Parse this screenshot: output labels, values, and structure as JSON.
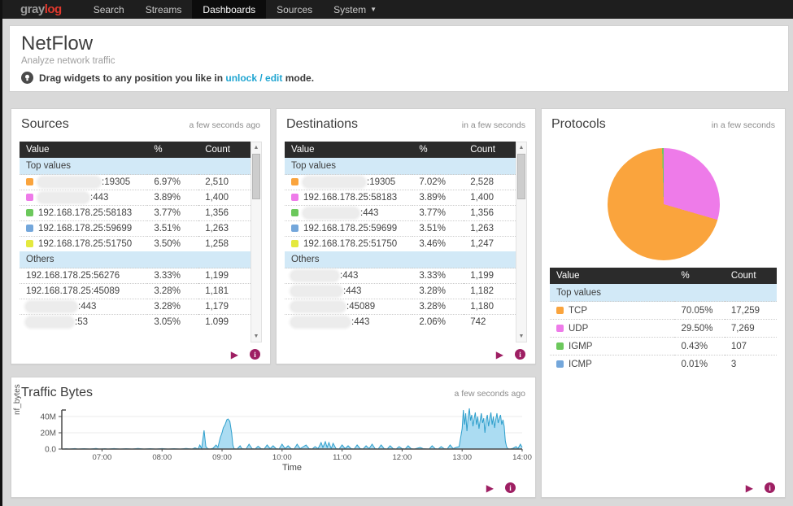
{
  "navbar": {
    "logo_gray": "gray",
    "logo_log": "log",
    "items": [
      {
        "label": "Search",
        "active": false,
        "caret": false
      },
      {
        "label": "Streams",
        "active": false,
        "caret": false
      },
      {
        "label": "Dashboards",
        "active": true,
        "caret": false
      },
      {
        "label": "Sources",
        "active": false,
        "caret": false
      },
      {
        "label": "System",
        "active": false,
        "caret": true
      }
    ]
  },
  "header": {
    "title": "NetFlow",
    "subtitle": "Analyze network traffic",
    "hint_prefix": "Drag widgets to any position you like in ",
    "hint_link": "unlock / edit",
    "hint_suffix": " mode."
  },
  "columns": [
    "Value",
    "%",
    "Count"
  ],
  "widgets": {
    "sources": {
      "title": "Sources",
      "updated": "a few seconds ago",
      "sections": [
        {
          "label": "Top values",
          "rows": [
            {
              "swatch": "#FAA43D",
              "redacted": true,
              "pill_w": 76,
              "value": ":19305",
              "pct": "6.97%",
              "count": "2,510"
            },
            {
              "swatch": "#EE7BE9",
              "redacted": true,
              "pill_w": 62,
              "value": ":443",
              "pct": "3.89%",
              "count": "1,400"
            },
            {
              "swatch": "#6CC85C",
              "redacted": false,
              "pill_w": 0,
              "value": "192.168.178.25:58183",
              "pct": "3.77%",
              "count": "1,356"
            },
            {
              "swatch": "#74A7DB",
              "redacted": false,
              "pill_w": 0,
              "value": "192.168.178.25:59699",
              "pct": "3.51%",
              "count": "1,263"
            },
            {
              "swatch": "#E4E93E",
              "redacted": false,
              "pill_w": 0,
              "value": "192.168.178.25:51750",
              "pct": "3.50%",
              "count": "1,258"
            }
          ]
        },
        {
          "label": "Others",
          "rows": [
            {
              "swatch": null,
              "redacted": false,
              "pill_w": 0,
              "value": "192.168.178.25:56276",
              "pct": "3.33%",
              "count": "1,199"
            },
            {
              "swatch": null,
              "redacted": false,
              "pill_w": 0,
              "value": "192.168.178.25:45089",
              "pct": "3.28%",
              "count": "1,181"
            },
            {
              "swatch": null,
              "redacted": true,
              "pill_w": 62,
              "value": ":443",
              "pct": "3.28%",
              "count": "1,179"
            },
            {
              "swatch": null,
              "redacted": true,
              "pill_w": 58,
              "value": ":53",
              "pct": "3.05%",
              "count": "1.099"
            }
          ]
        }
      ]
    },
    "destinations": {
      "title": "Destinations",
      "updated": "in a few seconds",
      "sections": [
        {
          "label": "Top values",
          "rows": [
            {
              "swatch": "#FAA43D",
              "redacted": true,
              "pill_w": 76,
              "value": ":19305",
              "pct": "7.02%",
              "count": "2,528"
            },
            {
              "swatch": "#EE7BE9",
              "redacted": false,
              "pill_w": 0,
              "value": "192.168.178.25:58183",
              "pct": "3.89%",
              "count": "1,400"
            },
            {
              "swatch": "#6CC85C",
              "redacted": true,
              "pill_w": 68,
              "value": ":443",
              "pct": "3.77%",
              "count": "1,356"
            },
            {
              "swatch": "#74A7DB",
              "redacted": false,
              "pill_w": 0,
              "value": "192.168.178.25:59699",
              "pct": "3.51%",
              "count": "1,263"
            },
            {
              "swatch": "#E4E93E",
              "redacted": false,
              "pill_w": 0,
              "value": "192.168.178.25:51750",
              "pct": "3.46%",
              "count": "1,247"
            }
          ]
        },
        {
          "label": "Others",
          "rows": [
            {
              "swatch": null,
              "redacted": true,
              "pill_w": 58,
              "value": ":443",
              "pct": "3.33%",
              "count": "1,199"
            },
            {
              "swatch": null,
              "redacted": true,
              "pill_w": 62,
              "value": ":443",
              "pct": "3.28%",
              "count": "1,182"
            },
            {
              "swatch": null,
              "redacted": true,
              "pill_w": 66,
              "value": ":45089",
              "pct": "3.28%",
              "count": "1,180"
            },
            {
              "swatch": null,
              "redacted": true,
              "pill_w": 72,
              "value": ":443",
              "pct": "2.06%",
              "count": "742"
            }
          ]
        }
      ]
    },
    "protocols": {
      "title": "Protocols",
      "updated": "in a few seconds",
      "sections": [
        {
          "label": "Top values",
          "rows": [
            {
              "swatch": "#FAA43D",
              "redacted": false,
              "pill_w": 0,
              "value": "TCP",
              "pct": "70.05%",
              "count": "17,259"
            },
            {
              "swatch": "#EE7BE9",
              "redacted": false,
              "pill_w": 0,
              "value": "UDP",
              "pct": "29.50%",
              "count": "7,269"
            },
            {
              "swatch": "#6CC85C",
              "redacted": false,
              "pill_w": 0,
              "value": "IGMP",
              "pct": "0.43%",
              "count": "107"
            },
            {
              "swatch": "#74A7DB",
              "redacted": false,
              "pill_w": 0,
              "value": "ICMP",
              "pct": "0.01%",
              "count": "3"
            }
          ]
        }
      ]
    },
    "traffic": {
      "title": "Traffic Bytes",
      "updated": "a few seconds ago"
    }
  },
  "chart_data": [
    {
      "type": "pie",
      "title": "Protocols",
      "labels": [
        "TCP",
        "UDP",
        "IGMP",
        "ICMP"
      ],
      "values": [
        70.05,
        29.5,
        0.43,
        0.01
      ],
      "counts": [
        17259,
        7269,
        107,
        3
      ],
      "draw_order_slices": [
        {
          "label": "UDP",
          "pct": 29.5,
          "color": "#EE7BE9"
        },
        {
          "label": "TCP",
          "pct": 70.05,
          "color": "#FAA43D"
        },
        {
          "label": "IGMP",
          "pct": 0.43,
          "color": "#6CC85C"
        },
        {
          "label": "ICMP",
          "pct": 0.01,
          "color": "#74A7DB"
        }
      ],
      "legend_position": "table-below"
    },
    {
      "type": "area",
      "title": "Traffic Bytes",
      "xlabel": "Time",
      "ylabel": "nf_bytes",
      "yticks": [
        "0.0",
        "20M",
        "40M"
      ],
      "ytick_values": [
        0,
        20,
        40
      ],
      "xticks": [
        "07:00",
        "08:00",
        "09:00",
        "10:00",
        "11:00",
        "12:00",
        "13:00",
        "14:00"
      ],
      "xtick_values": [
        7,
        8,
        9,
        10,
        11,
        12,
        13,
        14
      ],
      "xlim": [
        6.33,
        14.0
      ],
      "ylim": [
        0,
        52
      ],
      "y_unit": "bytes (M)",
      "line_color": "#2E9FCC",
      "fill_color": "#ABDCF2",
      "points": [
        [
          6.35,
          0
        ],
        [
          6.4,
          0.4
        ],
        [
          6.45,
          0
        ],
        [
          6.55,
          0.6
        ],
        [
          6.6,
          0
        ],
        [
          6.7,
          0.5
        ],
        [
          6.8,
          0
        ],
        [
          6.9,
          0.8
        ],
        [
          6.95,
          0
        ],
        [
          7.05,
          0.5
        ],
        [
          7.1,
          0
        ],
        [
          7.2,
          0.6
        ],
        [
          7.3,
          0
        ],
        [
          7.4,
          0.5
        ],
        [
          7.5,
          0
        ],
        [
          7.6,
          0.7
        ],
        [
          7.7,
          0
        ],
        [
          7.8,
          0.5
        ],
        [
          7.9,
          0
        ],
        [
          8.0,
          0.6
        ],
        [
          8.1,
          0
        ],
        [
          8.2,
          0.5
        ],
        [
          8.3,
          0
        ],
        [
          8.4,
          0.8
        ],
        [
          8.5,
          0
        ],
        [
          8.55,
          1.5
        ],
        [
          8.6,
          0
        ],
        [
          8.63,
          5
        ],
        [
          8.66,
          0.5
        ],
        [
          8.7,
          23
        ],
        [
          8.73,
          3
        ],
        [
          8.76,
          0.5
        ],
        [
          8.8,
          0
        ],
        [
          8.85,
          1
        ],
        [
          8.9,
          5
        ],
        [
          8.93,
          2
        ],
        [
          8.97,
          14
        ],
        [
          9.0,
          20
        ],
        [
          9.02,
          26
        ],
        [
          9.05,
          30
        ],
        [
          9.08,
          36
        ],
        [
          9.1,
          37
        ],
        [
          9.13,
          34
        ],
        [
          9.16,
          20
        ],
        [
          9.18,
          5
        ],
        [
          9.2,
          0.5
        ],
        [
          9.25,
          0
        ],
        [
          9.3,
          4
        ],
        [
          9.33,
          0.5
        ],
        [
          9.4,
          0
        ],
        [
          9.45,
          6
        ],
        [
          9.5,
          0.5
        ],
        [
          9.55,
          0
        ],
        [
          9.6,
          3.5
        ],
        [
          9.65,
          0.5
        ],
        [
          9.7,
          0
        ],
        [
          9.75,
          5
        ],
        [
          9.8,
          0.5
        ],
        [
          9.85,
          4
        ],
        [
          9.9,
          0.5
        ],
        [
          9.95,
          0
        ],
        [
          10.0,
          6
        ],
        [
          10.05,
          0.5
        ],
        [
          10.1,
          4
        ],
        [
          10.15,
          0.5
        ],
        [
          10.2,
          0
        ],
        [
          10.25,
          6
        ],
        [
          10.3,
          0.5
        ],
        [
          10.4,
          5
        ],
        [
          10.45,
          0.5
        ],
        [
          10.5,
          0
        ],
        [
          10.55,
          3
        ],
        [
          10.6,
          0.5
        ],
        [
          10.65,
          8
        ],
        [
          10.68,
          2
        ],
        [
          10.72,
          9
        ],
        [
          10.75,
          2
        ],
        [
          10.78,
          8
        ],
        [
          10.82,
          0.5
        ],
        [
          10.85,
          7
        ],
        [
          10.9,
          0.5
        ],
        [
          10.95,
          0
        ],
        [
          11.0,
          5
        ],
        [
          11.05,
          0.5
        ],
        [
          11.1,
          4
        ],
        [
          11.15,
          0.5
        ],
        [
          11.2,
          0
        ],
        [
          11.25,
          5
        ],
        [
          11.3,
          0.5
        ],
        [
          11.35,
          0
        ],
        [
          11.4,
          4
        ],
        [
          11.45,
          0.5
        ],
        [
          11.5,
          6
        ],
        [
          11.55,
          0.5
        ],
        [
          11.6,
          0
        ],
        [
          11.65,
          5
        ],
        [
          11.7,
          0.5
        ],
        [
          11.75,
          0
        ],
        [
          11.8,
          4
        ],
        [
          11.85,
          0.5
        ],
        [
          11.9,
          0
        ],
        [
          11.95,
          3
        ],
        [
          12.0,
          0.5
        ],
        [
          12.05,
          0
        ],
        [
          12.1,
          4
        ],
        [
          12.15,
          0.5
        ],
        [
          12.2,
          0
        ],
        [
          12.3,
          2
        ],
        [
          12.35,
          0.5
        ],
        [
          12.45,
          0
        ],
        [
          12.5,
          4
        ],
        [
          12.55,
          0.5
        ],
        [
          12.6,
          0
        ],
        [
          12.65,
          3
        ],
        [
          12.7,
          0.5
        ],
        [
          12.75,
          0
        ],
        [
          12.8,
          5
        ],
        [
          12.85,
          0.5
        ],
        [
          12.9,
          2
        ],
        [
          12.95,
          3
        ],
        [
          13.0,
          25
        ],
        [
          13.02,
          48
        ],
        [
          13.04,
          30
        ],
        [
          13.06,
          44
        ],
        [
          13.08,
          22
        ],
        [
          13.1,
          40
        ],
        [
          13.12,
          50
        ],
        [
          13.14,
          35
        ],
        [
          13.16,
          42
        ],
        [
          13.18,
          28
        ],
        [
          13.2,
          38
        ],
        [
          13.22,
          45
        ],
        [
          13.24,
          30
        ],
        [
          13.26,
          40
        ],
        [
          13.28,
          25
        ],
        [
          13.3,
          35
        ],
        [
          13.32,
          44
        ],
        [
          13.34,
          32
        ],
        [
          13.36,
          38
        ],
        [
          13.38,
          20
        ],
        [
          13.4,
          36
        ],
        [
          13.42,
          42
        ],
        [
          13.44,
          28
        ],
        [
          13.46,
          38
        ],
        [
          13.48,
          45
        ],
        [
          13.5,
          30
        ],
        [
          13.52,
          40
        ],
        [
          13.54,
          26
        ],
        [
          13.56,
          36
        ],
        [
          13.58,
          44
        ],
        [
          13.6,
          32
        ],
        [
          13.62,
          38
        ],
        [
          13.64,
          42
        ],
        [
          13.66,
          30
        ],
        [
          13.68,
          36
        ],
        [
          13.7,
          28
        ],
        [
          13.72,
          10
        ],
        [
          13.74,
          3
        ],
        [
          13.76,
          0.5
        ],
        [
          13.8,
          0
        ],
        [
          13.85,
          1
        ],
        [
          13.9,
          3
        ],
        [
          13.93,
          0.5
        ],
        [
          13.97,
          6
        ],
        [
          14.0,
          2
        ]
      ]
    }
  ]
}
